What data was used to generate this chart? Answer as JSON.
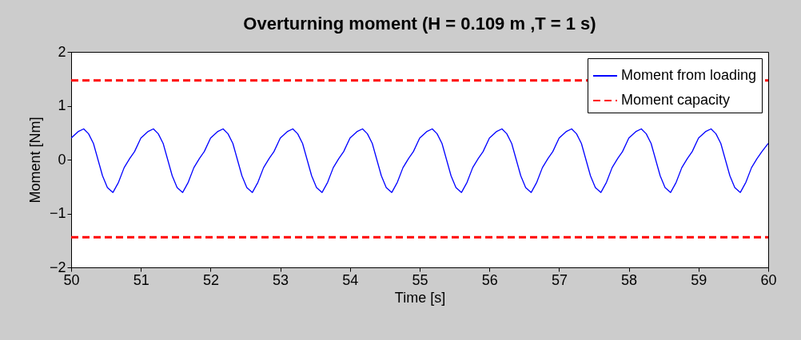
{
  "chart_data": {
    "type": "line",
    "title": "Overturning moment (H = 0.109 m ,T = 1 s)",
    "xlabel": "Time [s]",
    "ylabel": "Moment [Nm]",
    "xlim": [
      50,
      60
    ],
    "ylim": [
      -2,
      2
    ],
    "xticks": [
      50,
      51,
      52,
      53,
      54,
      55,
      56,
      57,
      58,
      59,
      60
    ],
    "yticks": [
      -2,
      -1,
      0,
      1,
      2
    ],
    "legend": "top right",
    "series": [
      {
        "name": "Moment from loading",
        "color": "#0000ff",
        "line_style": "solid",
        "x": [
          50,
          50.1,
          50.18,
          50.25,
          50.32,
          50.45,
          50.52,
          50.6,
          50.68,
          50.76,
          50.84,
          50.91,
          51,
          51.1,
          51.18,
          51.25,
          51.32,
          51.45,
          51.52,
          51.6,
          51.68,
          51.76,
          51.84,
          51.91,
          52,
          52.1,
          52.18,
          52.25,
          52.32,
          52.45,
          52.52,
          52.6,
          52.68,
          52.76,
          52.84,
          52.91,
          53,
          53.1,
          53.18,
          53.25,
          53.32,
          53.45,
          53.52,
          53.6,
          53.68,
          53.76,
          53.84,
          53.91,
          54,
          54.1,
          54.18,
          54.25,
          54.32,
          54.45,
          54.52,
          54.6,
          54.68,
          54.76,
          54.84,
          54.91,
          55,
          55.1,
          55.18,
          55.25,
          55.32,
          55.45,
          55.52,
          55.6,
          55.68,
          55.76,
          55.84,
          55.91,
          56,
          56.1,
          56.18,
          56.25,
          56.32,
          56.45,
          56.52,
          56.6,
          56.68,
          56.76,
          56.84,
          56.91,
          57,
          57.1,
          57.18,
          57.25,
          57.32,
          57.45,
          57.52,
          57.6,
          57.68,
          57.76,
          57.84,
          57.91,
          58,
          58.1,
          58.18,
          58.25,
          58.32,
          58.45,
          58.52,
          58.6,
          58.68,
          58.76,
          58.84,
          58.91,
          59,
          59.1,
          59.18,
          59.25,
          59.32,
          59.45,
          59.52,
          59.6,
          59.68,
          59.76,
          59.84,
          59.91,
          60
        ],
        "values": [
          0.4,
          0.52,
          0.57,
          0.48,
          0.3,
          -0.3,
          -0.52,
          -0.61,
          -0.42,
          -0.15,
          0.02,
          0.15,
          0.4,
          0.52,
          0.57,
          0.48,
          0.3,
          -0.3,
          -0.52,
          -0.61,
          -0.42,
          -0.15,
          0.02,
          0.15,
          0.4,
          0.52,
          0.57,
          0.48,
          0.3,
          -0.3,
          -0.52,
          -0.61,
          -0.42,
          -0.15,
          0.02,
          0.15,
          0.4,
          0.52,
          0.57,
          0.48,
          0.3,
          -0.3,
          -0.52,
          -0.61,
          -0.42,
          -0.15,
          0.02,
          0.15,
          0.4,
          0.52,
          0.57,
          0.48,
          0.3,
          -0.3,
          -0.52,
          -0.61,
          -0.42,
          -0.15,
          0.02,
          0.15,
          0.4,
          0.52,
          0.57,
          0.48,
          0.3,
          -0.3,
          -0.52,
          -0.61,
          -0.42,
          -0.15,
          0.02,
          0.15,
          0.4,
          0.52,
          0.57,
          0.48,
          0.3,
          -0.3,
          -0.52,
          -0.61,
          -0.42,
          -0.15,
          0.02,
          0.15,
          0.4,
          0.52,
          0.57,
          0.48,
          0.3,
          -0.3,
          -0.52,
          -0.61,
          -0.42,
          -0.15,
          0.02,
          0.15,
          0.4,
          0.52,
          0.57,
          0.48,
          0.3,
          -0.3,
          -0.52,
          -0.61,
          -0.42,
          -0.15,
          0.02,
          0.15,
          0.4,
          0.52,
          0.57,
          0.48,
          0.3,
          -0.3,
          -0.52,
          -0.61,
          -0.42,
          -0.15,
          0.02,
          0.15,
          0.3
        ]
      },
      {
        "name": "Moment capacity",
        "color": "#ff0000",
        "line_style": "dashed",
        "x": [
          50,
          60
        ],
        "values": [
          1.47,
          1.47
        ]
      },
      {
        "color": "#ff0000",
        "line_style": "dashed",
        "x": [
          50,
          60
        ],
        "values": [
          -1.44,
          -1.44
        ]
      }
    ]
  }
}
